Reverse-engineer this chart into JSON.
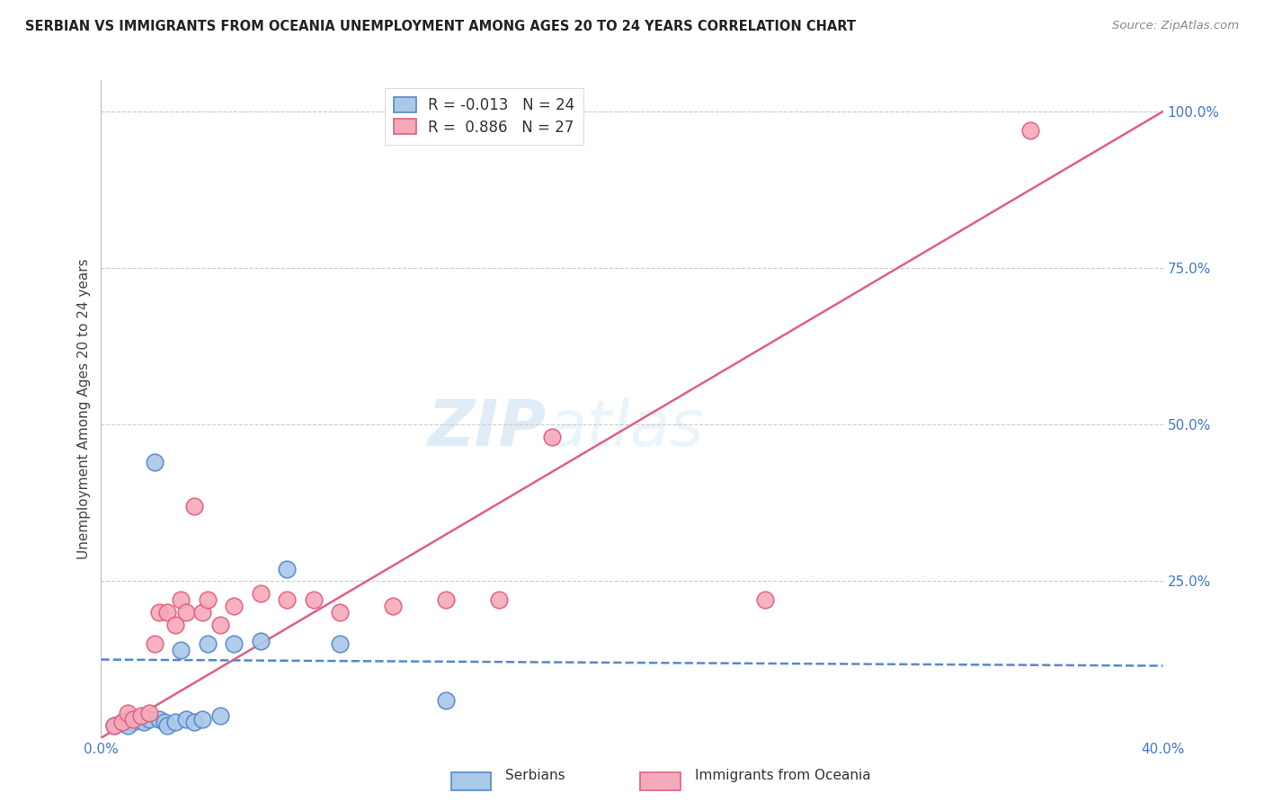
{
  "title": "SERBIAN VS IMMIGRANTS FROM OCEANIA UNEMPLOYMENT AMONG AGES 20 TO 24 YEARS CORRELATION CHART",
  "source": "Source: ZipAtlas.com",
  "ylabel": "Unemployment Among Ages 20 to 24 years",
  "xlim": [
    0.0,
    0.4
  ],
  "ylim": [
    0.0,
    1.05
  ],
  "xticks": [
    0.0,
    0.08,
    0.16,
    0.24,
    0.32,
    0.4
  ],
  "xticklabels": [
    "0.0%",
    "",
    "",
    "",
    "",
    "40.0%"
  ],
  "yticks_right": [
    0.0,
    0.25,
    0.5,
    0.75,
    1.0
  ],
  "yticklabels_right": [
    "",
    "25.0%",
    "50.0%",
    "75.0%",
    "100.0%"
  ],
  "grid_color": "#cccccc",
  "background_color": "#ffffff",
  "watermark_zip": "ZIP",
  "watermark_atlas": "atlas",
  "legend_R1": "-0.013",
  "legend_N1": "24",
  "legend_R2": "0.886",
  "legend_N2": "27",
  "serbian_color": "#aac8e8",
  "oceania_color": "#f5aabb",
  "serbian_line_color": "#5588cc",
  "oceania_line_color": "#e06080",
  "tick_color": "#4477cc",
  "serbian_scatter_x": [
    0.005,
    0.008,
    0.01,
    0.012,
    0.015,
    0.016,
    0.018,
    0.02,
    0.022,
    0.024,
    0.025,
    0.028,
    0.03,
    0.032,
    0.035,
    0.038,
    0.04,
    0.045,
    0.05,
    0.06,
    0.07,
    0.09,
    0.13,
    0.01
  ],
  "serbian_scatter_y": [
    0.02,
    0.025,
    0.03,
    0.025,
    0.03,
    0.025,
    0.03,
    0.44,
    0.03,
    0.025,
    0.02,
    0.025,
    0.14,
    0.03,
    0.025,
    0.03,
    0.15,
    0.035,
    0.15,
    0.155,
    0.27,
    0.15,
    0.06,
    0.02
  ],
  "oceania_scatter_x": [
    0.005,
    0.008,
    0.01,
    0.012,
    0.015,
    0.018,
    0.02,
    0.022,
    0.025,
    0.028,
    0.03,
    0.032,
    0.035,
    0.038,
    0.04,
    0.045,
    0.05,
    0.06,
    0.07,
    0.08,
    0.09,
    0.11,
    0.13,
    0.15,
    0.17,
    0.25,
    0.35
  ],
  "oceania_scatter_y": [
    0.02,
    0.025,
    0.04,
    0.03,
    0.035,
    0.04,
    0.15,
    0.2,
    0.2,
    0.18,
    0.22,
    0.2,
    0.37,
    0.2,
    0.22,
    0.18,
    0.21,
    0.23,
    0.22,
    0.22,
    0.2,
    0.21,
    0.22,
    0.22,
    0.48,
    0.22,
    0.97
  ],
  "oceania_line_x0": 0.0,
  "oceania_line_y0": 0.0,
  "oceania_line_x1": 0.4,
  "oceania_line_y1": 1.0,
  "serbian_line_x0": 0.0,
  "serbian_line_y0": 0.125,
  "serbian_line_x1": 0.4,
  "serbian_line_y1": 0.115
}
